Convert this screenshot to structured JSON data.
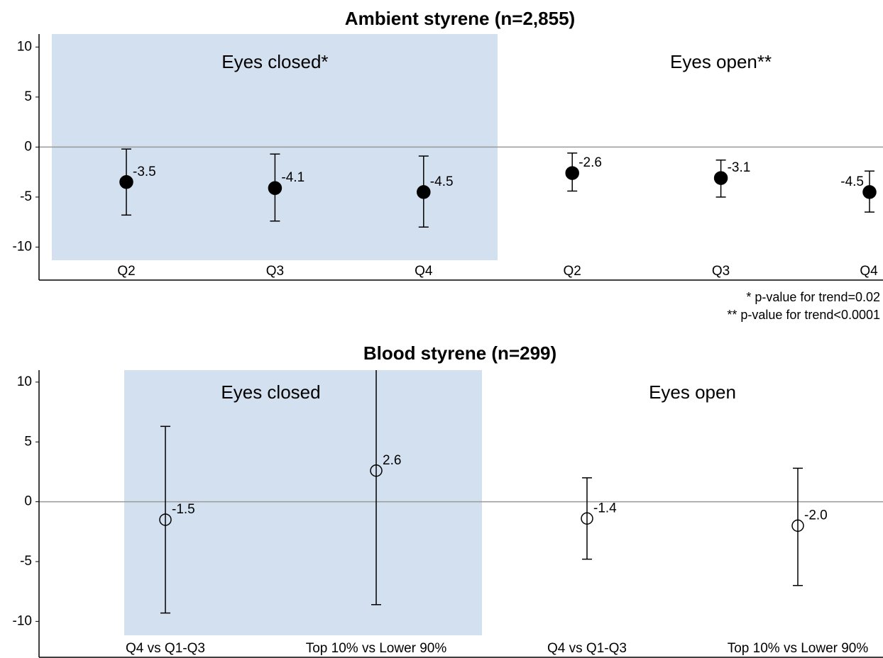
{
  "chart_data": [
    {
      "type": "errorbar",
      "title": "Ambient styrene (n=2,855)",
      "ylim": [
        -13.3,
        11.3
      ],
      "yticks": [
        -10,
        -5,
        0,
        5,
        10
      ],
      "zero_line": true,
      "shade_color": "#d3e0ef",
      "footnotes": [
        "* p-value for trend=0.02",
        "** p-value for trend<0.0001"
      ],
      "series": [
        {
          "name": "Eyes closed*",
          "shaded": true,
          "marker": "filled",
          "color": "#000000",
          "categories": [
            "Q2",
            "Q3",
            "Q4"
          ],
          "values": [
            -3.5,
            -4.1,
            -4.5
          ],
          "value_labels": [
            "-3.5",
            "-4.1",
            "-4.5"
          ],
          "lower": [
            -6.8,
            -7.4,
            -8.0
          ],
          "upper": [
            -0.2,
            -0.7,
            -0.9
          ]
        },
        {
          "name": "Eyes open**",
          "shaded": false,
          "marker": "filled",
          "color": "#000000",
          "categories": [
            "Q2",
            "Q3",
            "Q4"
          ],
          "values": [
            -2.6,
            -3.1,
            -4.5
          ],
          "value_labels": [
            "-2.6",
            "-3.1",
            "-4.5"
          ],
          "lower": [
            -4.4,
            -5.0,
            -6.5
          ],
          "upper": [
            -0.6,
            -1.3,
            -2.4
          ]
        }
      ]
    },
    {
      "type": "errorbar",
      "title": "Blood styrene (n=299)",
      "ylim": [
        -13.0,
        11.0
      ],
      "yticks": [
        -10,
        -5,
        0,
        5,
        10
      ],
      "zero_line": true,
      "shade_color": "#d3e0ef",
      "series": [
        {
          "name": "Eyes closed",
          "shaded": true,
          "marker": "open",
          "color": "#000000",
          "categories": [
            "Q4 vs Q1-Q3",
            "Top 10% vs Lower 90%"
          ],
          "values": [
            -1.5,
            2.6
          ],
          "value_labels": [
            "-1.5",
            "2.6"
          ],
          "lower": [
            -9.3,
            -8.6
          ],
          "upper": [
            6.3,
            13.8
          ]
        },
        {
          "name": "Eyes open",
          "shaded": false,
          "marker": "open",
          "color": "#000000",
          "categories": [
            "Q4 vs Q1-Q3",
            "Top 10% vs Lower 90%"
          ],
          "values": [
            -1.4,
            -2.0
          ],
          "value_labels": [
            "-1.4",
            "-2.0"
          ],
          "lower": [
            -4.8,
            -7.0
          ],
          "upper": [
            2.0,
            2.8
          ]
        }
      ]
    }
  ]
}
